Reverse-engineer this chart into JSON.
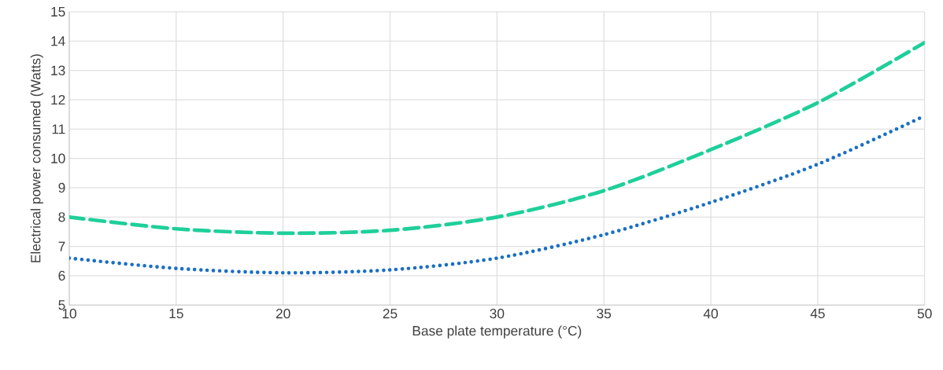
{
  "chart_data": {
    "type": "line",
    "xlabel": "Base plate temperature (°C)",
    "ylabel": "Electrical power consumed (Watts)",
    "x": [
      10,
      15,
      20,
      25,
      30,
      35,
      40,
      45,
      50
    ],
    "series": [
      {
        "color": "#1a6fc4",
        "line_style": "dotted",
        "values": [
          6.6,
          6.25,
          6.1,
          6.2,
          6.6,
          7.4,
          8.5,
          9.8,
          11.45
        ]
      },
      {
        "color": "#1fcf9a",
        "line_style": "dashed",
        "values": [
          8.0,
          7.6,
          7.45,
          7.55,
          8.0,
          8.9,
          10.3,
          11.9,
          13.95
        ]
      }
    ],
    "xlim": [
      10,
      50
    ],
    "ylim": [
      5,
      15
    ],
    "xticks": [
      10,
      15,
      20,
      25,
      30,
      35,
      40,
      45,
      50
    ],
    "yticks": [
      5,
      6,
      7,
      8,
      9,
      10,
      11,
      12,
      13,
      14,
      15
    ],
    "grid": true,
    "marker": "none"
  }
}
